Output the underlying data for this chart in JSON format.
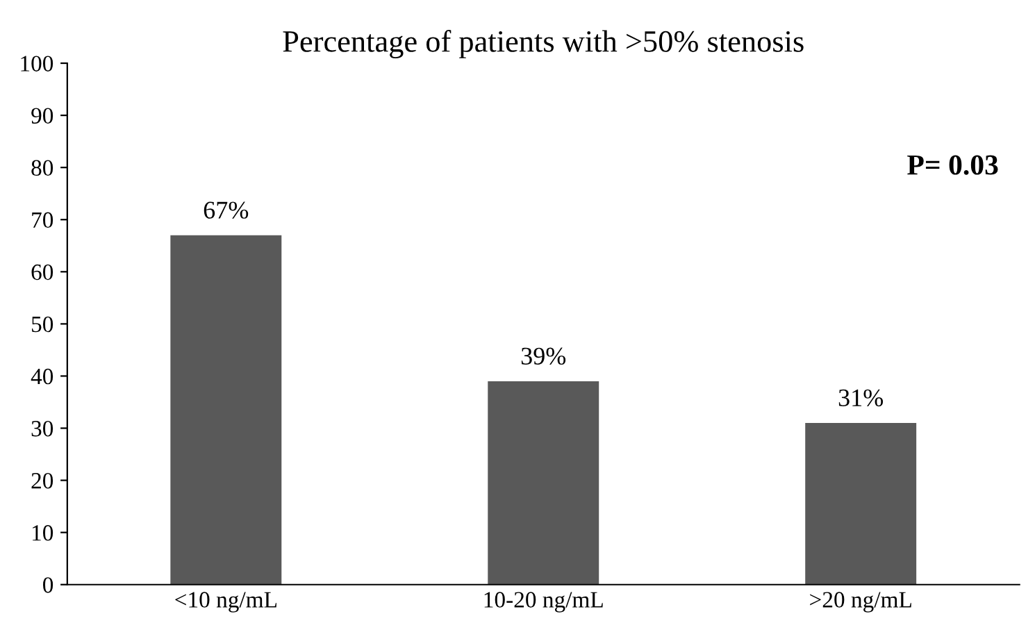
{
  "chart_data": {
    "type": "bar",
    "title": "Percentage of patients with >50% stenosis",
    "categories": [
      "<10 ng/mL",
      "10-20 ng/mL",
      ">20 ng/mL"
    ],
    "values": [
      67,
      39,
      31
    ],
    "value_labels": [
      "67%",
      "39%",
      "31%"
    ],
    "color": "#595959",
    "ylim": [
      0,
      100
    ],
    "yticks": [
      0,
      10,
      20,
      30,
      40,
      50,
      60,
      70,
      80,
      90,
      100
    ],
    "grid": false,
    "legend": false,
    "annotations": [
      "P= 0.03"
    ]
  }
}
